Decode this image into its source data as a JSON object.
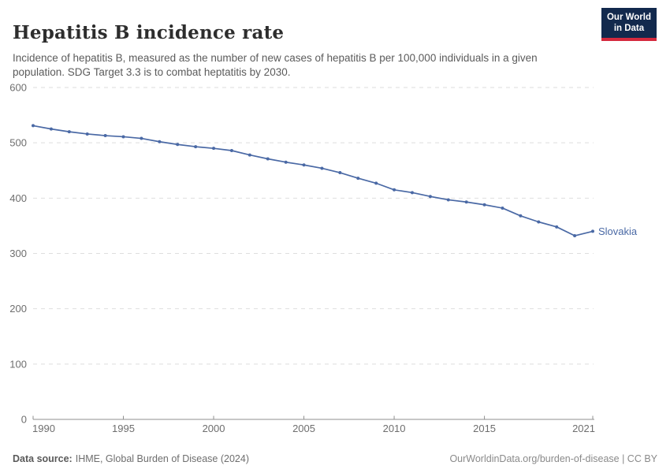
{
  "header": {
    "title": "Hepatitis B incidence rate",
    "subtitle": "Incidence of hepatitis B, measured as the number of new cases of hepatitis B per 100,000 individuals in a given population. SDG Target 3.3 is to combat heptatitis by 2030.",
    "logo": {
      "line1": "Our World",
      "line2": "in Data"
    }
  },
  "chart_data": {
    "type": "line",
    "title": "Hepatitis B incidence rate",
    "xlabel": "",
    "ylabel": "",
    "xlim": [
      1990,
      2021
    ],
    "ylim": [
      0,
      600
    ],
    "x_ticks": [
      1990,
      1995,
      2000,
      2005,
      2010,
      2015,
      2021
    ],
    "y_ticks": [
      0,
      100,
      200,
      300,
      400,
      500,
      600
    ],
    "grid": "horizontal-dashed",
    "legend_position": "end-of-line-label",
    "series": [
      {
        "name": "Slovakia",
        "color": "#4a69a5",
        "x": [
          1990,
          1991,
          1992,
          1993,
          1994,
          1995,
          1996,
          1997,
          1998,
          1999,
          2000,
          2001,
          2002,
          2003,
          2004,
          2005,
          2006,
          2007,
          2008,
          2009,
          2010,
          2011,
          2012,
          2013,
          2014,
          2015,
          2016,
          2017,
          2018,
          2019,
          2020,
          2021
        ],
        "values": [
          531,
          525,
          520,
          516,
          513,
          511,
          508,
          502,
          497,
          493,
          490,
          486,
          478,
          471,
          465,
          460,
          454,
          446,
          436,
          427,
          415,
          410,
          403,
          397,
          393,
          388,
          382,
          368,
          357,
          348,
          332,
          340
        ]
      }
    ]
  },
  "footer": {
    "source_label": "Data source:",
    "source_value": "IHME, Global Burden of Disease (2024)",
    "credit": "OurWorldinData.org/burden-of-disease | CC BY"
  },
  "colors": {
    "line": "#4a69a5",
    "grid": "#dedede",
    "axis": "#8f8f8f",
    "tick_label": "#6e6e6e",
    "logo_navy": "#12294d",
    "logo_red": "#d5293d"
  }
}
